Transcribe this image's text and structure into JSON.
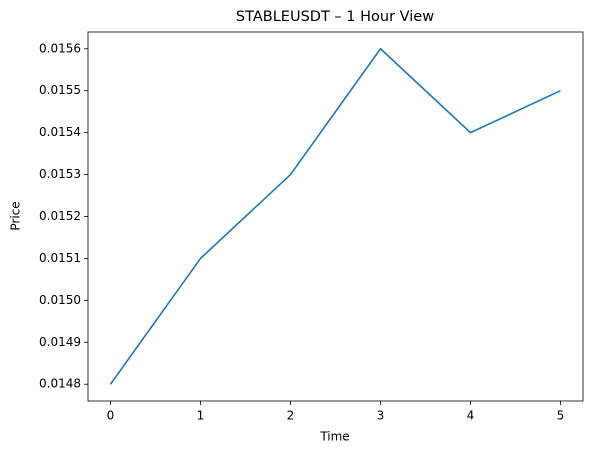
{
  "chart_data": {
    "type": "line",
    "title": "STABLEUSDT – 1 Hour View",
    "x_label": "Time",
    "y_label": "Price",
    "x": [
      0,
      1,
      2,
      3,
      4,
      5
    ],
    "values": [
      0.0148,
      0.0151,
      0.0153,
      0.0156,
      0.0154,
      0.0155
    ],
    "color": "#1f77b4",
    "xlim": [
      -0.25,
      5.25
    ],
    "xticks": [
      0,
      1,
      2,
      3,
      4,
      5
    ],
    "ylim": [
      0.01476,
      0.01564
    ],
    "yticks": [
      0.0148,
      0.0149,
      {
        "value": 0.015,
        "label": "0.0150"
      },
      0.0151,
      0.0152,
      0.0153,
      0.0154,
      0.0155,
      0.0156
    ],
    "grid": false
  }
}
